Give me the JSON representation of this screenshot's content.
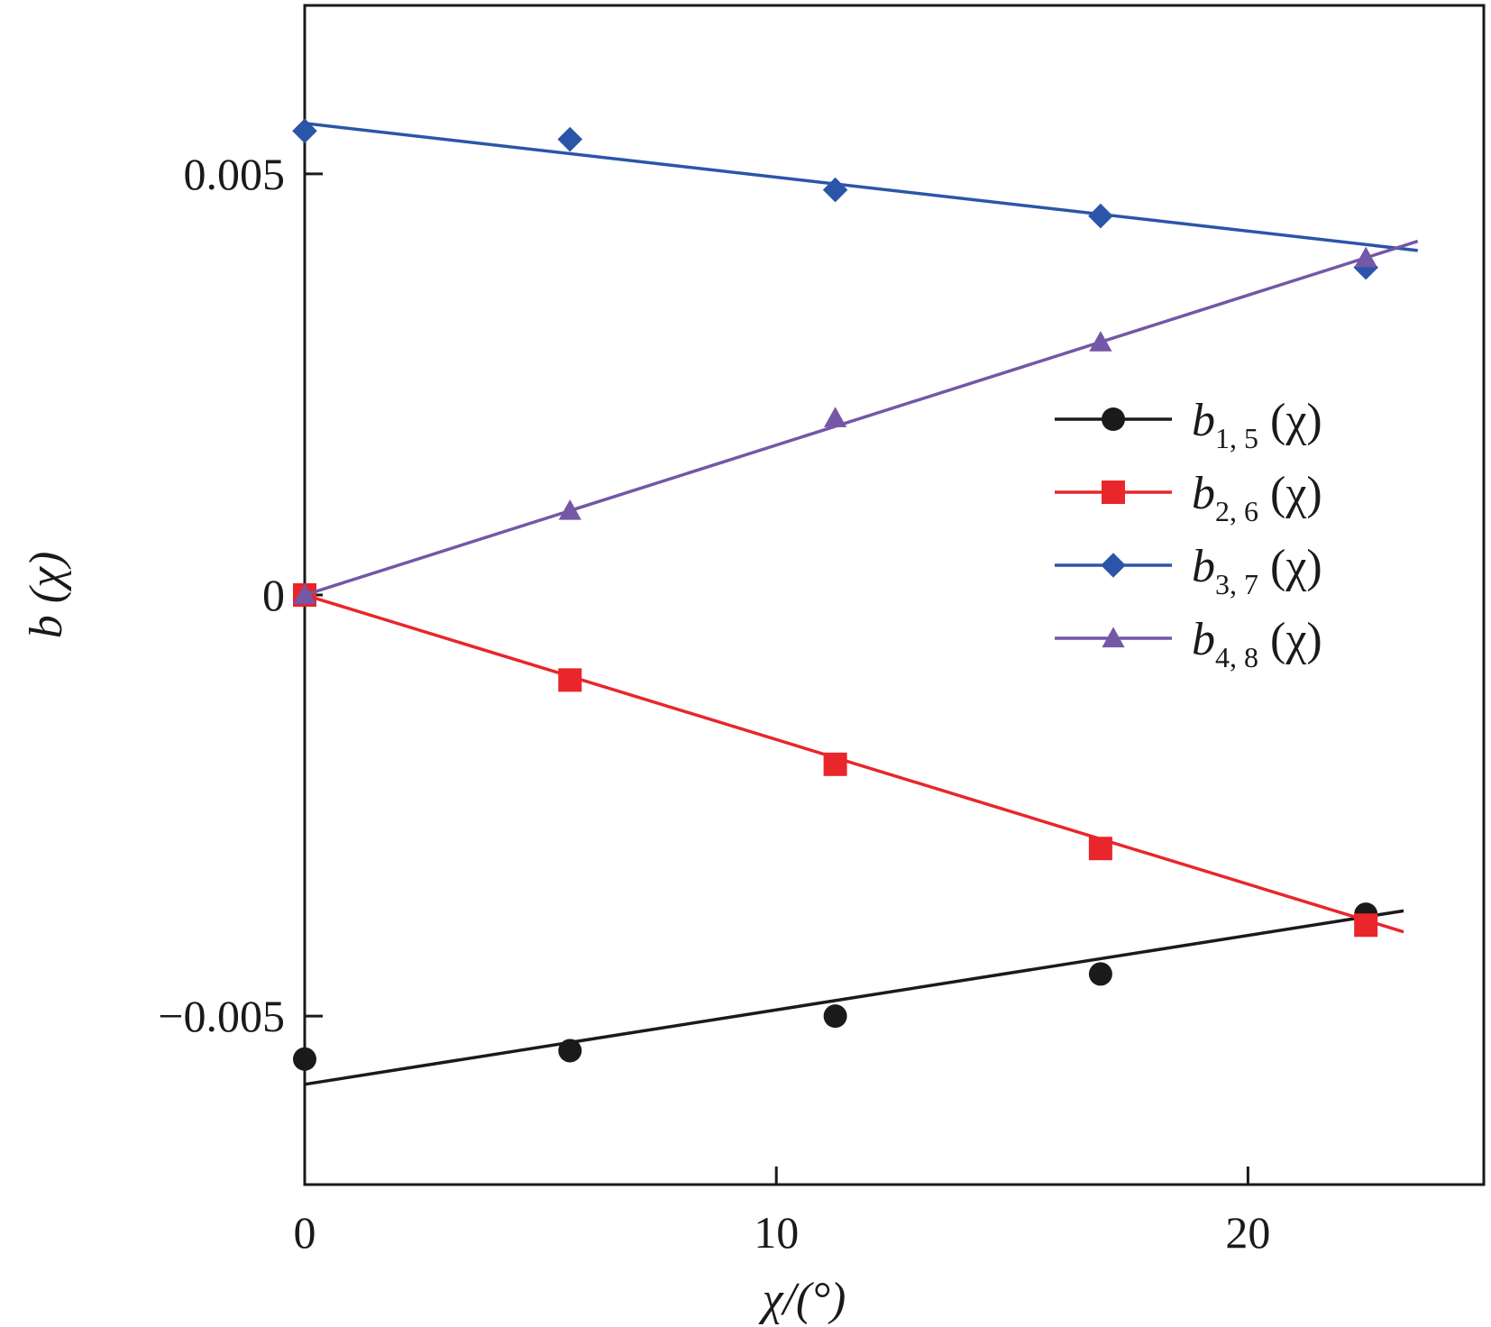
{
  "chart_data": {
    "type": "line",
    "xlabel": "χ/(°)",
    "ylabel": "b (χ)",
    "xlim": [
      0,
      25
    ],
    "ylim": [
      -0.007,
      0.007
    ],
    "x_ticks": [
      0,
      10,
      20
    ],
    "x_tick_labels": [
      "0",
      "10",
      "20"
    ],
    "y_ticks": [
      -0.005,
      0,
      0.005
    ],
    "y_tick_labels": [
      "−0.005",
      "0",
      "0.005"
    ],
    "grid": false,
    "legend_position": "right",
    "series": [
      {
        "name": "b1, 5 (χ)",
        "name_base": "b",
        "name_sub": "1, 5",
        "name_arg": " (χ)",
        "color": "#1a1a1a",
        "marker": "circle",
        "x": [
          0,
          5.625,
          11.25,
          16.875,
          22.5
        ],
        "values": [
          -0.00551,
          -0.00541,
          -0.005,
          -0.0045,
          -0.00379
        ],
        "fit": {
          "x": [
            0,
            23.3
          ],
          "y": [
            -0.00581,
            -0.00375
          ]
        }
      },
      {
        "name": "b2, 6 (χ)",
        "name_base": "b",
        "name_sub": "2, 6",
        "name_arg": " (χ)",
        "color": "#e8262b",
        "marker": "square",
        "x": [
          0,
          5.625,
          11.25,
          16.875,
          22.5
        ],
        "values": [
          0.0,
          -0.00101,
          -0.00201,
          -0.00301,
          -0.00392
        ],
        "fit": {
          "x": [
            0,
            23.3
          ],
          "y": [
            0.0,
            -0.004
          ]
        }
      },
      {
        "name": "b3, 7 (χ)",
        "name_base": "b",
        "name_sub": "3, 7",
        "name_arg": " (χ)",
        "color": "#2b55a8",
        "marker": "diamond",
        "x": [
          0,
          5.625,
          11.25,
          16.875,
          22.5
        ],
        "values": [
          0.00551,
          0.00541,
          0.00481,
          0.0045,
          0.00389
        ],
        "fit": {
          "x": [
            0,
            23.6
          ],
          "y": [
            0.0056,
            0.00409
          ]
        }
      },
      {
        "name": "b4, 8 (χ)",
        "name_base": "b",
        "name_sub": "4, 8",
        "name_arg": " (χ)",
        "color": "#7457a6",
        "marker": "triangle",
        "x": [
          0,
          5.625,
          11.25,
          16.875,
          22.5
        ],
        "values": [
          0.0,
          0.001,
          0.0021,
          0.003,
          0.004
        ],
        "fit": {
          "x": [
            0,
            23.6
          ],
          "y": [
            0.0,
            0.0042
          ]
        }
      }
    ]
  }
}
